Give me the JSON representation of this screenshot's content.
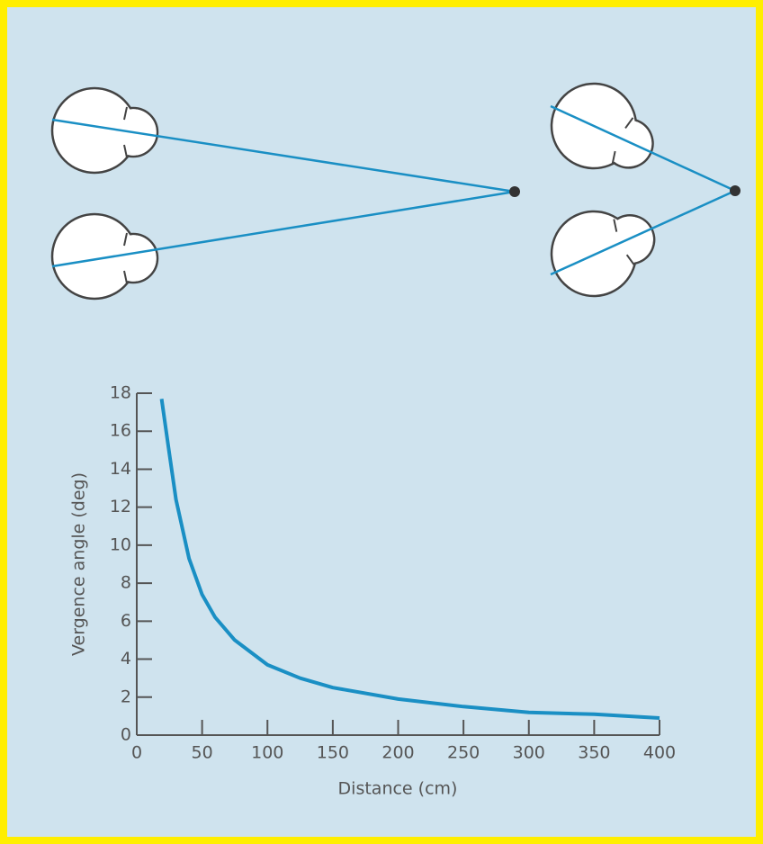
{
  "chart_data": {
    "type": "line",
    "x": [
      19,
      25,
      30,
      40,
      50,
      60,
      75,
      100,
      125,
      150,
      200,
      250,
      300,
      350,
      400
    ],
    "values": [
      17.7,
      14.8,
      12.4,
      9.3,
      7.4,
      6.2,
      5.0,
      3.7,
      3.0,
      2.5,
      1.9,
      1.5,
      1.2,
      1.1,
      0.9
    ],
    "color": "#1a8fc4",
    "xlabel": "Distance (cm)",
    "ylabel": "Vergence angle (deg)",
    "xlim": [
      0,
      400
    ],
    "xticks": [
      0,
      50,
      100,
      150,
      200,
      250,
      300,
      350,
      400
    ],
    "ylim": [
      0,
      18
    ],
    "yticks": [
      0,
      2,
      4,
      6,
      8,
      10,
      12,
      14,
      16,
      18
    ]
  }
}
